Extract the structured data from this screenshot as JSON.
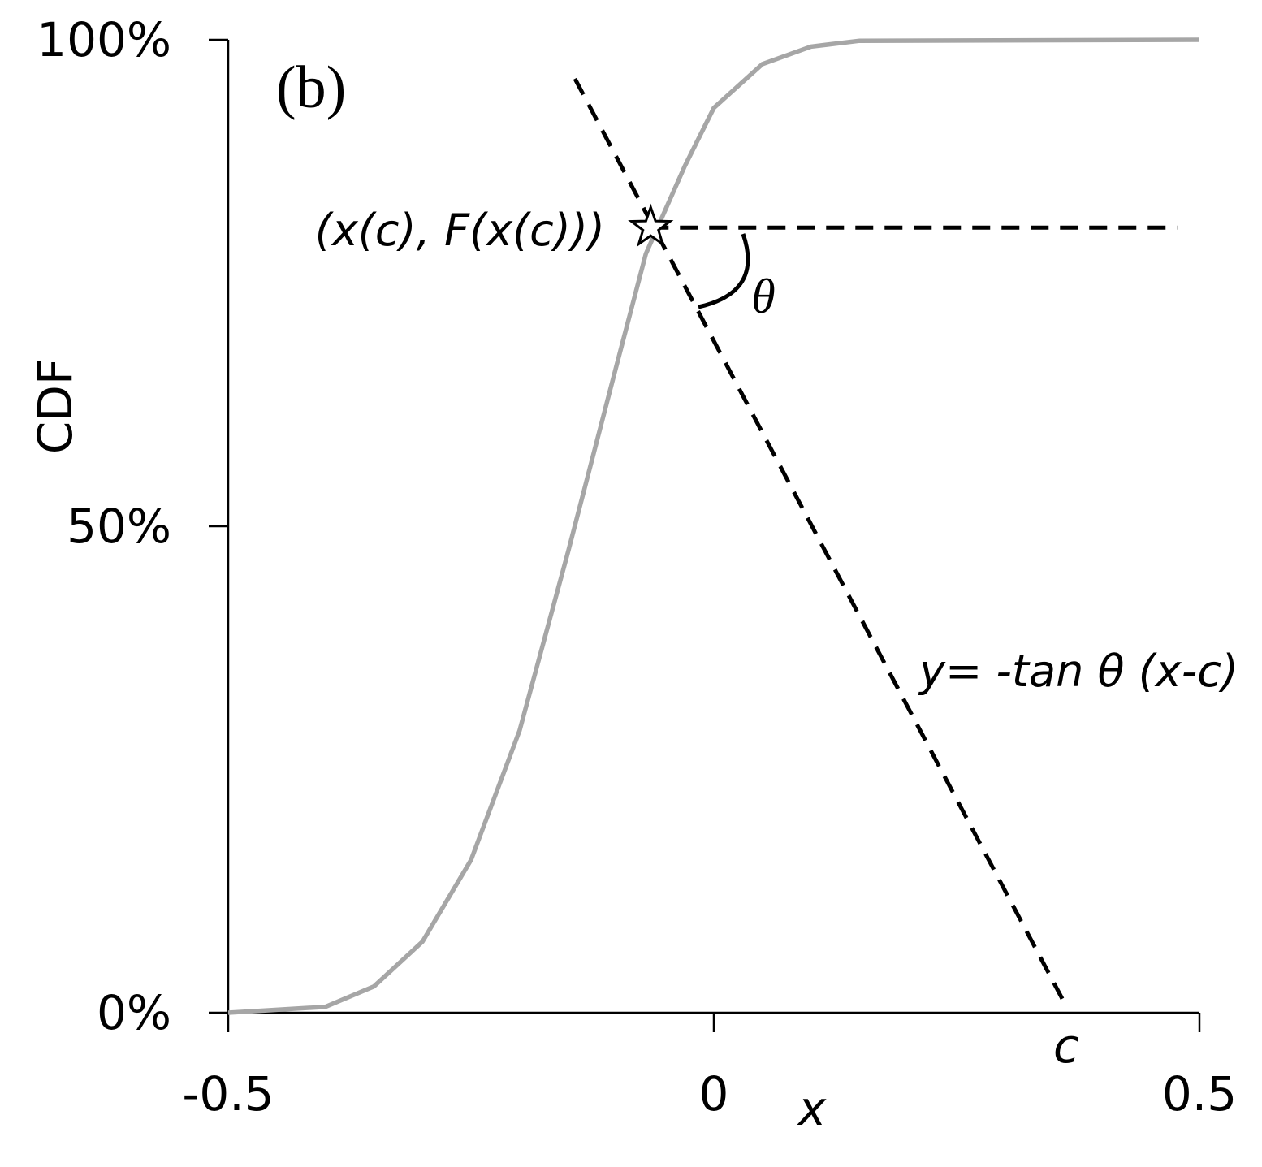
{
  "chart_data": {
    "type": "line",
    "panel_label": "(b)",
    "y_label": "CDF",
    "x_label": "x",
    "xlim": [
      -0.5,
      0.5
    ],
    "xticks": [
      -0.5,
      0,
      0.5
    ],
    "ylim": [
      0,
      100
    ],
    "yticks": [
      {
        "value": 0,
        "label": "0%"
      },
      {
        "value": 50,
        "label": "50%"
      },
      {
        "value": 100,
        "label": "100%"
      }
    ],
    "series": [
      {
        "color": "#a6a6a6",
        "style": "solid",
        "x": [
          -0.5,
          -0.4,
          -0.35,
          -0.3,
          -0.25,
          -0.2,
          -0.15,
          -0.1,
          -0.07,
          -0.03,
          0,
          0.05,
          0.1,
          0.15,
          0.5
        ],
        "values": [
          0,
          0.6,
          2.7,
          7.3,
          15.7,
          29,
          47.4,
          66.6,
          78,
          87,
          93,
          97.5,
          99.3,
          99.9,
          100
        ]
      },
      {
        "color": "#000000",
        "style": "dashed",
        "x": [
          -0.143,
          0.36
        ],
        "values": [
          96,
          1.2
        ]
      },
      {
        "color": "#000000",
        "style": "dashed",
        "x": [
          -0.065,
          0.477
        ],
        "values": [
          80.7,
          80.7
        ]
      }
    ],
    "point": {
      "x": -0.065,
      "value": 80.7,
      "label": "(x(c), F(x(c)))"
    },
    "angle_label": "θ",
    "line_label": "y= -tan θ (x-c)",
    "c_label": "c"
  }
}
